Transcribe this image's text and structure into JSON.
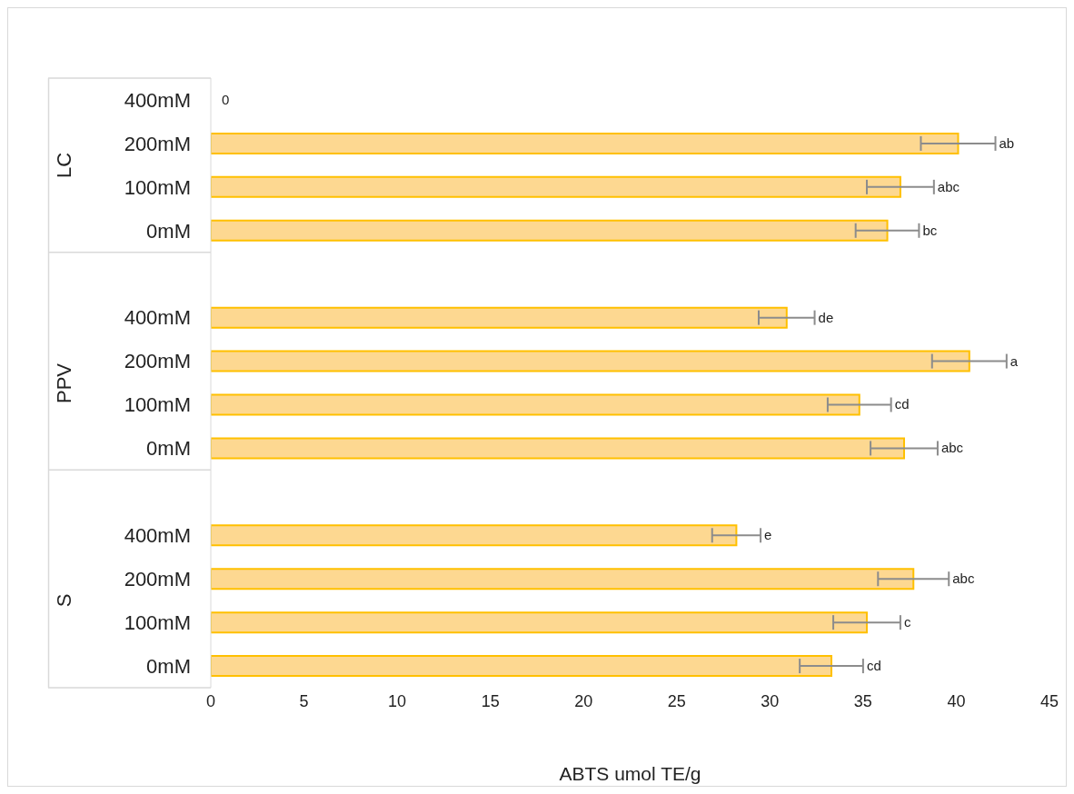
{
  "chart_data": {
    "type": "bar",
    "orientation": "horizontal",
    "xlabel": "ABTS umol TE/g",
    "categories": [
      "400mM",
      "200mM",
      "100mM",
      "0mM",
      null,
      "400mM",
      "200mM",
      "100mM",
      "0mM",
      null,
      "400mM",
      "200mM",
      "100mM",
      "0mM"
    ],
    "values": [
      0,
      40.1,
      37.0,
      36.3,
      null,
      30.9,
      40.7,
      34.8,
      37.2,
      null,
      28.2,
      37.7,
      35.2,
      33.3
    ],
    "errors": [
      null,
      2.0,
      1.8,
      1.7,
      null,
      1.5,
      2.0,
      1.7,
      1.8,
      null,
      1.3,
      1.9,
      1.8,
      1.7
    ],
    "value_labels": [
      "0",
      "ab",
      "abc",
      "bc",
      null,
      "de",
      "a",
      "cd",
      "abc",
      null,
      "e",
      "abc",
      "c",
      "cd"
    ],
    "color": "#ffc000",
    "annotations": [
      "LC",
      "PPV",
      "S"
    ],
    "xlim": [
      0,
      45
    ],
    "xticks": [
      0,
      5,
      10,
      15,
      20,
      25,
      30,
      35,
      40,
      45
    ],
    "grid": false,
    "legend": false
  }
}
